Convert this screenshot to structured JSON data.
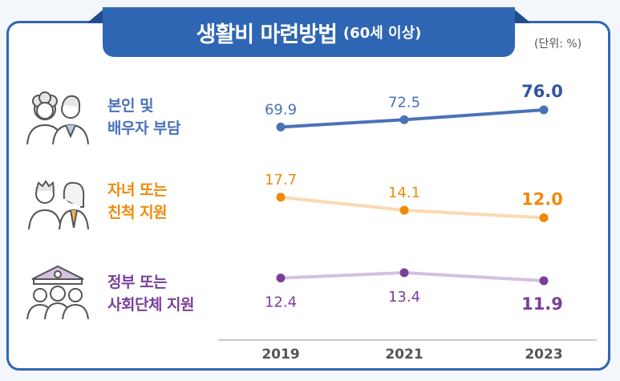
{
  "title": "생활비 마련방법",
  "subtitle": "(60세 이상)",
  "unit": "(단위: %)",
  "colors": {
    "frame": "#2f66b3",
    "self": "#4a72b8",
    "children": "#f0890a",
    "gov": "#7a3f99"
  },
  "chart_data": {
    "type": "line",
    "x": [
      "2019",
      "2021",
      "2023"
    ],
    "series": [
      {
        "name_lines": [
          "본인 및",
          "배우자 부담"
        ],
        "values": [
          69.9,
          72.5,
          76.0
        ],
        "labels": [
          "69.9",
          "72.5",
          "76.0"
        ],
        "color": "#4a72b8",
        "line_color": "#4a72b8",
        "icon": "elderly-couple-icon"
      },
      {
        "name_lines": [
          "자녀 또는",
          "친척 지원"
        ],
        "values": [
          17.7,
          14.1,
          12.0
        ],
        "labels": [
          "17.7",
          "14.1",
          "12.0"
        ],
        "color": "#f0890a",
        "line_color": "#fbd9b0",
        "icon": "family-icon"
      },
      {
        "name_lines": [
          "정부 또는",
          "사회단체 지원"
        ],
        "values": [
          12.4,
          13.4,
          11.9
        ],
        "labels": [
          "12.4",
          "13.4",
          "11.9"
        ],
        "color": "#7a3f99",
        "line_color": "#d3c1e0",
        "icon": "government-support-icon"
      }
    ]
  }
}
